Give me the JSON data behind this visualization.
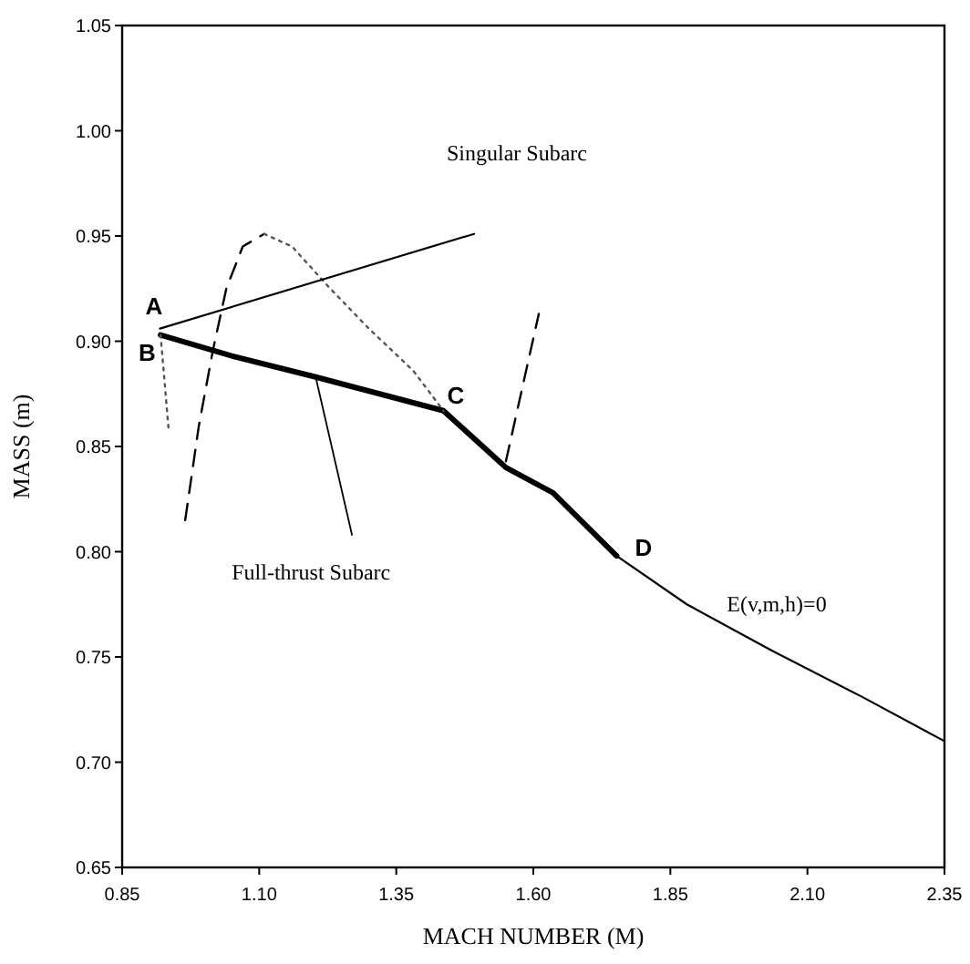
{
  "chart_data": {
    "type": "line",
    "xlabel": "MACH NUMBER (M)",
    "ylabel": "MASS (m)",
    "xlim": [
      0.85,
      2.35
    ],
    "ylim": [
      0.65,
      1.05
    ],
    "xticks": [
      0.85,
      {
        "value": 1.1,
        "label": "1.10"
      },
      1.35,
      {
        "value": 1.6,
        "label": "1.60"
      },
      1.85,
      {
        "value": 2.1,
        "label": "2.10"
      },
      2.35
    ],
    "yticks": [
      0.65,
      {
        "value": 0.7,
        "label": "0.70"
      },
      0.75,
      {
        "value": 0.8,
        "label": "0.80"
      },
      0.85,
      {
        "value": 0.9,
        "label": "0.90"
      },
      0.95,
      {
        "value": 1.0,
        "label": "1.00"
      },
      1.05
    ],
    "grid": false,
    "series": [
      {
        "color": "#000000",
        "line_style": "solid",
        "x": [
          1.436,
          1.55,
          1.636,
          1.752,
          1.88,
          2.035,
          2.2,
          2.35
        ],
        "values": [
          0.867,
          0.84,
          0.828,
          0.798,
          0.775,
          0.753,
          0.731,
          0.71
        ]
      },
      {
        "color": "#000000",
        "line_style": "solid",
        "x": [
          0.92,
          1.05,
          1.203,
          1.436,
          1.55,
          1.636,
          1.752
        ],
        "values": [
          0.903,
          0.893,
          0.883,
          0.867,
          0.84,
          0.828,
          0.798
        ]
      },
      {
        "color": "#000000",
        "line_style": "dashed",
        "x": [
          0.965,
          0.99,
          1.015,
          1.04,
          1.07,
          1.109
        ],
        "values": [
          0.815,
          0.86,
          0.895,
          0.925,
          0.945,
          0.951
        ]
      },
      {
        "color": "#555555",
        "line_style": "dotted",
        "x": [
          1.109,
          1.16,
          1.226,
          1.3,
          1.381,
          1.436
        ],
        "values": [
          0.951,
          0.945,
          0.926,
          0.906,
          0.886,
          0.867
        ]
      },
      {
        "color": "#555555",
        "line_style": "dotted",
        "x": [
          0.92,
          0.926,
          0.935
        ],
        "values": [
          0.903,
          0.885,
          0.857
        ]
      },
      {
        "color": "#000000",
        "line_style": "solid",
        "x": [
          0.919,
          1.492
        ],
        "values": [
          0.906,
          0.951
        ]
      },
      {
        "color": "#000000",
        "line_style": "dashed",
        "x": [
          1.55,
          1.61
        ],
        "values": [
          0.843,
          0.913
        ]
      }
    ],
    "annotations": [
      {
        "text": "A",
        "x": 0.919,
        "y": 0.906
      },
      {
        "text": "B",
        "x": 0.92,
        "y": 0.903
      },
      {
        "text": "C",
        "x": 1.436,
        "y": 0.867
      },
      {
        "text": "D",
        "x": 1.752,
        "y": 0.798
      },
      "Singular Subarc",
      {
        "text": "Full-thrust Subarc",
        "x": 1.203,
        "y": 0.883
      },
      {
        "text": "E(v,m,h)=0",
        "x": 1.88,
        "y": 0.775
      }
    ]
  }
}
